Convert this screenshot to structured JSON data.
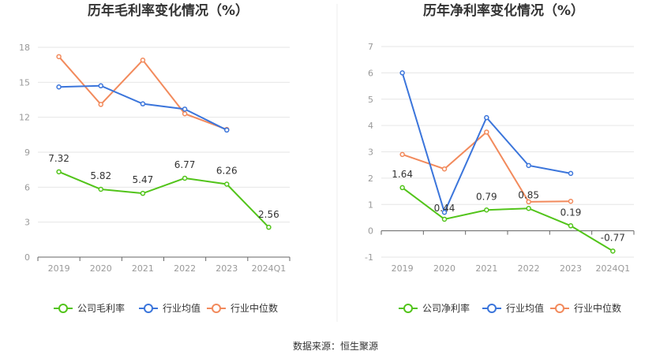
{
  "source": "数据来源：恒生聚源",
  "colors": {
    "company": "#52c41a",
    "avg": "#3b75db",
    "median": "#f28a5c"
  },
  "chart_data": [
    {
      "type": "line",
      "title": "历年毛利率变化情况（%）",
      "categories": [
        "2019",
        "2020",
        "2021",
        "2022",
        "2023",
        "2024Q1"
      ],
      "ylim": [
        0,
        18
      ],
      "yticks": [
        0,
        3,
        6,
        9,
        12,
        15,
        18
      ],
      "grid": true,
      "legend_position": "bottom",
      "series": [
        {
          "name": "公司毛利率",
          "key": "company",
          "values": [
            7.32,
            5.82,
            5.47,
            6.77,
            6.26,
            2.56
          ],
          "labels": [
            "7.32",
            "5.82",
            "5.47",
            "6.77",
            "6.26",
            "2.56"
          ]
        },
        {
          "name": "行业均值",
          "key": "avg",
          "values": [
            14.6,
            14.7,
            13.15,
            12.7,
            10.9,
            null
          ]
        },
        {
          "name": "行业中位数",
          "key": "median",
          "values": [
            17.2,
            13.1,
            16.9,
            12.3,
            10.95,
            null
          ]
        }
      ]
    },
    {
      "type": "line",
      "title": "历年净利率变化情况（%）",
      "categories": [
        "2019",
        "2020",
        "2021",
        "2022",
        "2023",
        "2024Q1"
      ],
      "ylim": [
        -1,
        7
      ],
      "yticks": [
        -1,
        0,
        1,
        2,
        3,
        4,
        5,
        6,
        7
      ],
      "grid": true,
      "legend_position": "bottom",
      "series": [
        {
          "name": "公司净利率",
          "key": "company",
          "values": [
            1.64,
            0.44,
            0.79,
            0.85,
            0.19,
            -0.77
          ],
          "labels": [
            "1.64",
            "0.44",
            "0.79",
            "0.85",
            "0.19",
            "-0.77"
          ]
        },
        {
          "name": "行业均值",
          "key": "avg",
          "values": [
            6.0,
            0.7,
            4.3,
            2.48,
            2.18,
            null
          ]
        },
        {
          "name": "行业中位数",
          "key": "median",
          "values": [
            2.9,
            2.35,
            3.75,
            1.1,
            1.12,
            null
          ]
        }
      ]
    }
  ]
}
